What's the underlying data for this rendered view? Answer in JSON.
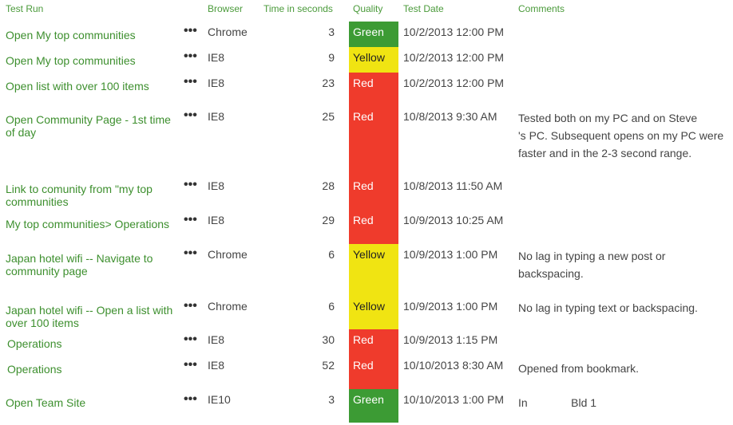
{
  "headers": {
    "test_run": "Test Run",
    "browser": "Browser",
    "time": "Time in seconds",
    "quality": "Quality",
    "test_date": "Test Date",
    "comments": "Comments"
  },
  "menu_glyph": "•••",
  "colors": {
    "Green": "#3c9b34",
    "Yellow": "#f0e412",
    "Red": "#ef3b2c",
    "link": "#3d8f2e"
  },
  "rows": [
    {
      "title": "Open My top communities",
      "browser": "Chrome",
      "time": "3",
      "quality": "Green",
      "date": "10/2/2013 12:00 PM",
      "comments": ""
    },
    {
      "title": "Open My top communities",
      "browser": "IE8",
      "time": "9",
      "quality": "Yellow",
      "date": "10/2/2013 12:00 PM",
      "comments": ""
    },
    {
      "title": "Open list with over 100 items",
      "browser": "IE8",
      "time": "23",
      "quality": "Red",
      "date": "10/2/2013 12:00 PM",
      "comments": ""
    },
    {
      "title": "Open Community Page - 1st time of day",
      "browser": "IE8",
      "time": "25",
      "quality": "Red",
      "date": "10/8/2013 9:30 AM",
      "comments": "Tested both on my PC and on Steve        's PC. Subsequent opens on my PC were faster and in the 2-3 second range."
    },
    {
      "title": "Link to comunity from \"my top communities",
      "browser": "IE8",
      "time": "28",
      "quality": "Red",
      "date": "10/8/2013 11:50 AM",
      "comments": ""
    },
    {
      "title": "My top communities> Operations",
      "browser": "IE8",
      "time": "29",
      "quality": "Red",
      "date": "10/9/2013 10:25 AM",
      "comments": ""
    },
    {
      "title": "Japan hotel wifi -- Navigate to community page",
      "browser": "Chrome",
      "time": "6",
      "quality": "Yellow",
      "date": "10/9/2013 1:00 PM",
      "comments": "No lag in typing a new post or backspacing."
    },
    {
      "title": "Japan hotel wifi -- Open a list with over 100 items",
      "browser": "Chrome",
      "time": "6",
      "quality": "Yellow",
      "date": "10/9/2013 1:00 PM",
      "comments": "No lag in typing text or backspacing."
    },
    {
      "title": "Operations",
      "browser": "IE8",
      "time": "30",
      "quality": "Red",
      "date": "10/9/2013 1:15 PM",
      "comments": ""
    },
    {
      "title": "Operations",
      "browser": "IE8",
      "time": "52",
      "quality": "Red",
      "date": "10/10/2013 8:30 AM",
      "comments": "Opened from bookmark."
    },
    {
      "title": "Open Team Site",
      "browser": "IE10",
      "time": "3",
      "quality": "Green",
      "date": "10/10/2013 1:00 PM",
      "comments": "In              Bld 1"
    }
  ]
}
